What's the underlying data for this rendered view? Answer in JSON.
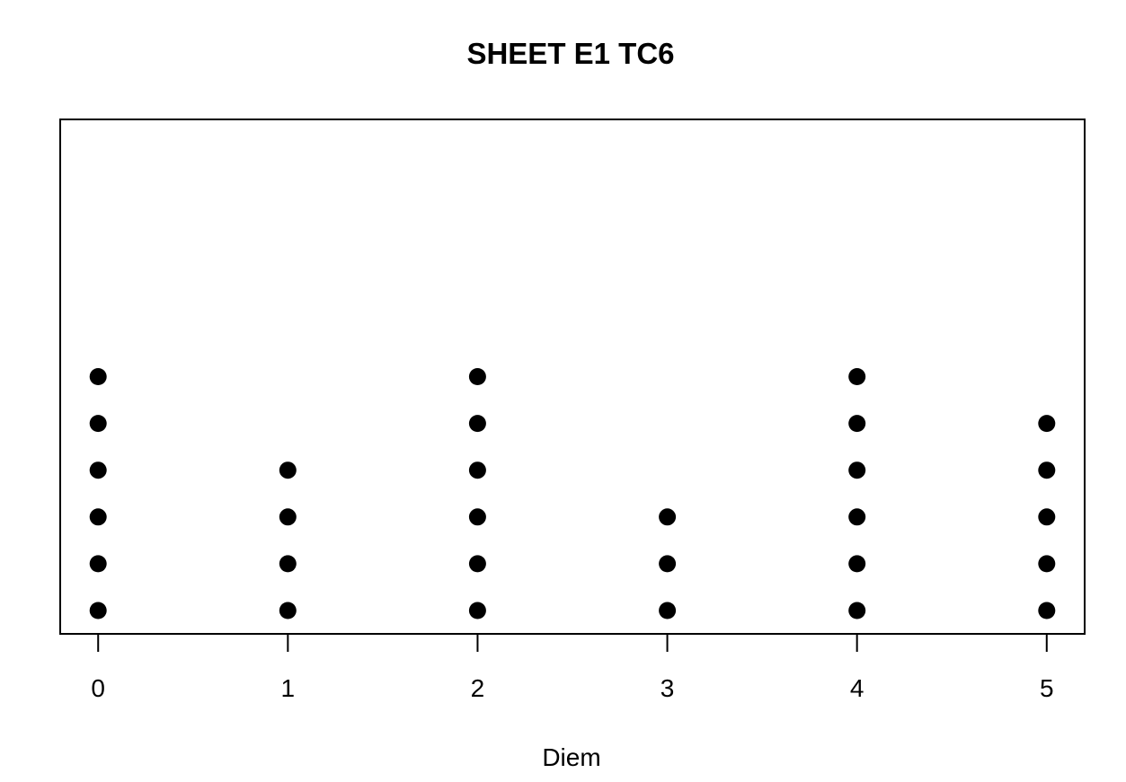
{
  "chart_data": {
    "type": "scatter",
    "title": "SHEET E1 TC6",
    "xlabel": "Diem",
    "ylabel": "",
    "x_ticks": [
      "0",
      "1",
      "2",
      "3",
      "4",
      "5"
    ],
    "categories": [
      0,
      1,
      2,
      3,
      4,
      5
    ],
    "counts": [
      6,
      4,
      6,
      3,
      6,
      5
    ],
    "xlim": [
      -0.2,
      5.2
    ],
    "ylim": [
      0.5,
      11.5
    ],
    "grid": false,
    "legend": "none",
    "colors": {
      "points": "#000000",
      "frame": "#000000",
      "background": "#ffffff"
    }
  }
}
